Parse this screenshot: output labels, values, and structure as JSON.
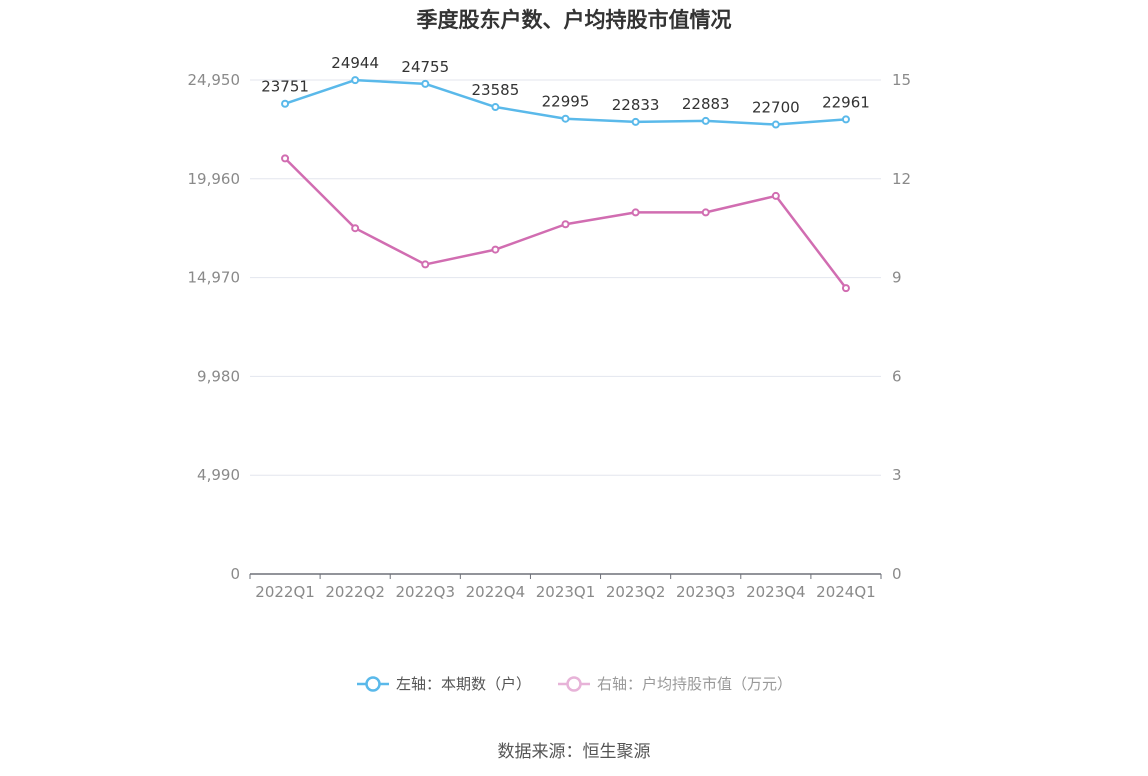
{
  "chart_data": {
    "type": "line",
    "title": "季度股东户数、户均持股市值情况",
    "categories": [
      "2022Q1",
      "2022Q2",
      "2022Q3",
      "2022Q4",
      "2023Q1",
      "2023Q2",
      "2023Q3",
      "2023Q4",
      "2024Q1"
    ],
    "left_axis": {
      "ticks": [
        "0",
        "4,990",
        "9,980",
        "14,970",
        "19,960",
        "24,950"
      ],
      "range": [
        0,
        24950
      ]
    },
    "right_axis": {
      "ticks": [
        "0",
        "3",
        "6",
        "9",
        "12",
        "15"
      ],
      "range": [
        0,
        15
      ]
    },
    "series": [
      {
        "name": "左轴：本期数（户）",
        "axis": "left",
        "color": "#5ab9ea",
        "values": [
          23751,
          24944,
          24755,
          23585,
          22995,
          22833,
          22883,
          22700,
          22961
        ],
        "labels": [
          "23751",
          "24944",
          "24755",
          "23585",
          "22995",
          "22833",
          "22883",
          "22700",
          "22961"
        ]
      },
      {
        "name": "右轴：户均持股市值（万元）",
        "axis": "right",
        "color": "#d16db1",
        "values": [
          12.62,
          10.5,
          9.4,
          9.85,
          10.62,
          10.98,
          10.98,
          11.48,
          8.68
        ]
      }
    ],
    "legend_position": "bottom",
    "grid": true
  },
  "source": "数据来源：恒生聚源"
}
